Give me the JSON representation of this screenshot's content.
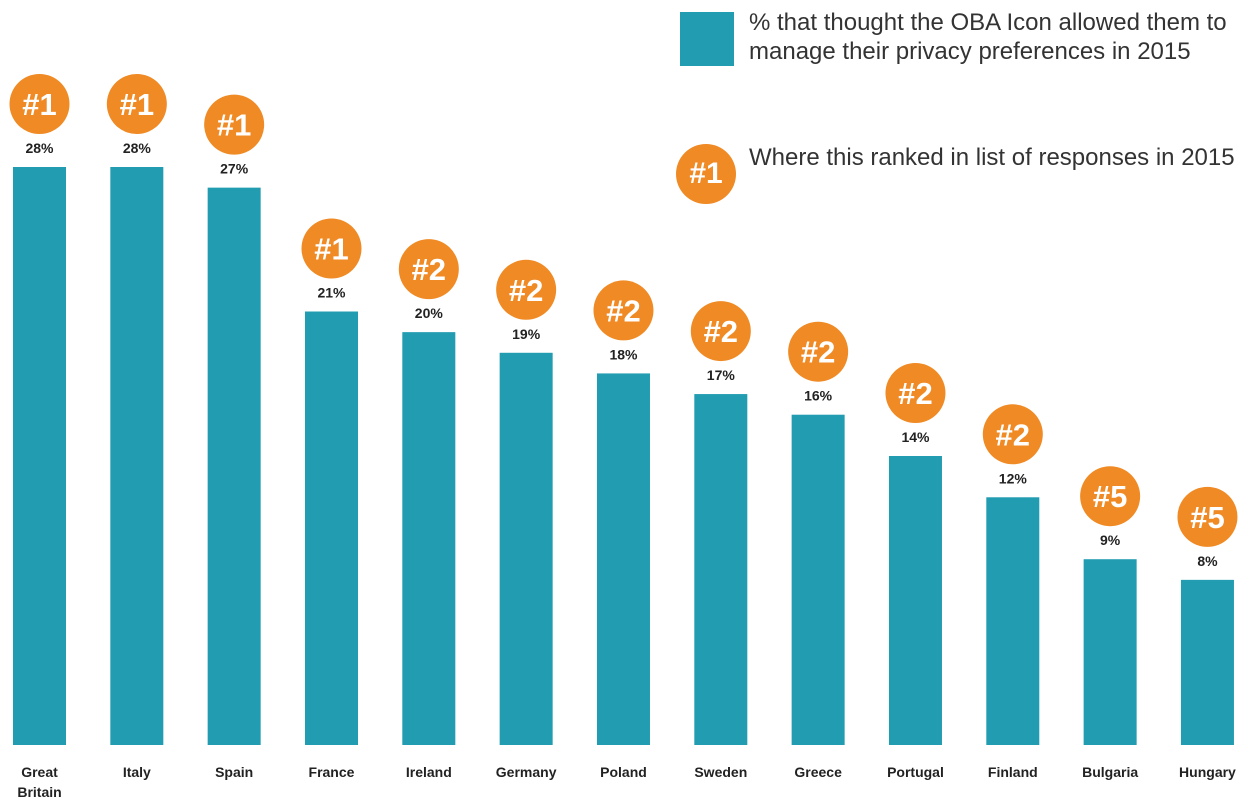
{
  "colors": {
    "bar": "#219cb1",
    "badge": "#ef8a24",
    "background": "#ffffff",
    "text": "#222222"
  },
  "legend": {
    "series_label": "% that thought the OBA Icon allowed them to manage their privacy preferences in 2015",
    "rank_badge": "#1",
    "rank_label": "Where this ranked in list of responses in 2015"
  },
  "chart_data": {
    "type": "bar",
    "title": "",
    "xlabel": "",
    "ylabel": "",
    "ylim": [
      0,
      28
    ],
    "grid": false,
    "legend_placement": "top-right",
    "categories": [
      "Great Britain",
      "Italy",
      "Spain",
      "France",
      "Ireland",
      "Germany",
      "Poland",
      "Sweden",
      "Greece",
      "Portugal",
      "Finland",
      "Bulgaria",
      "Hungary"
    ],
    "values": [
      28,
      28,
      27,
      21,
      20,
      19,
      18,
      17,
      16,
      14,
      12,
      9,
      8
    ],
    "value_labels": [
      "28%",
      "28%",
      "27%",
      "21%",
      "20%",
      "19%",
      "18%",
      "17%",
      "16%",
      "14%",
      "12%",
      "9%",
      "8%"
    ],
    "ranks": [
      "#1",
      "#1",
      "#1",
      "#1",
      "#2",
      "#2",
      "#2",
      "#2",
      "#2",
      "#2",
      "#2",
      "#5",
      "#5"
    ]
  }
}
